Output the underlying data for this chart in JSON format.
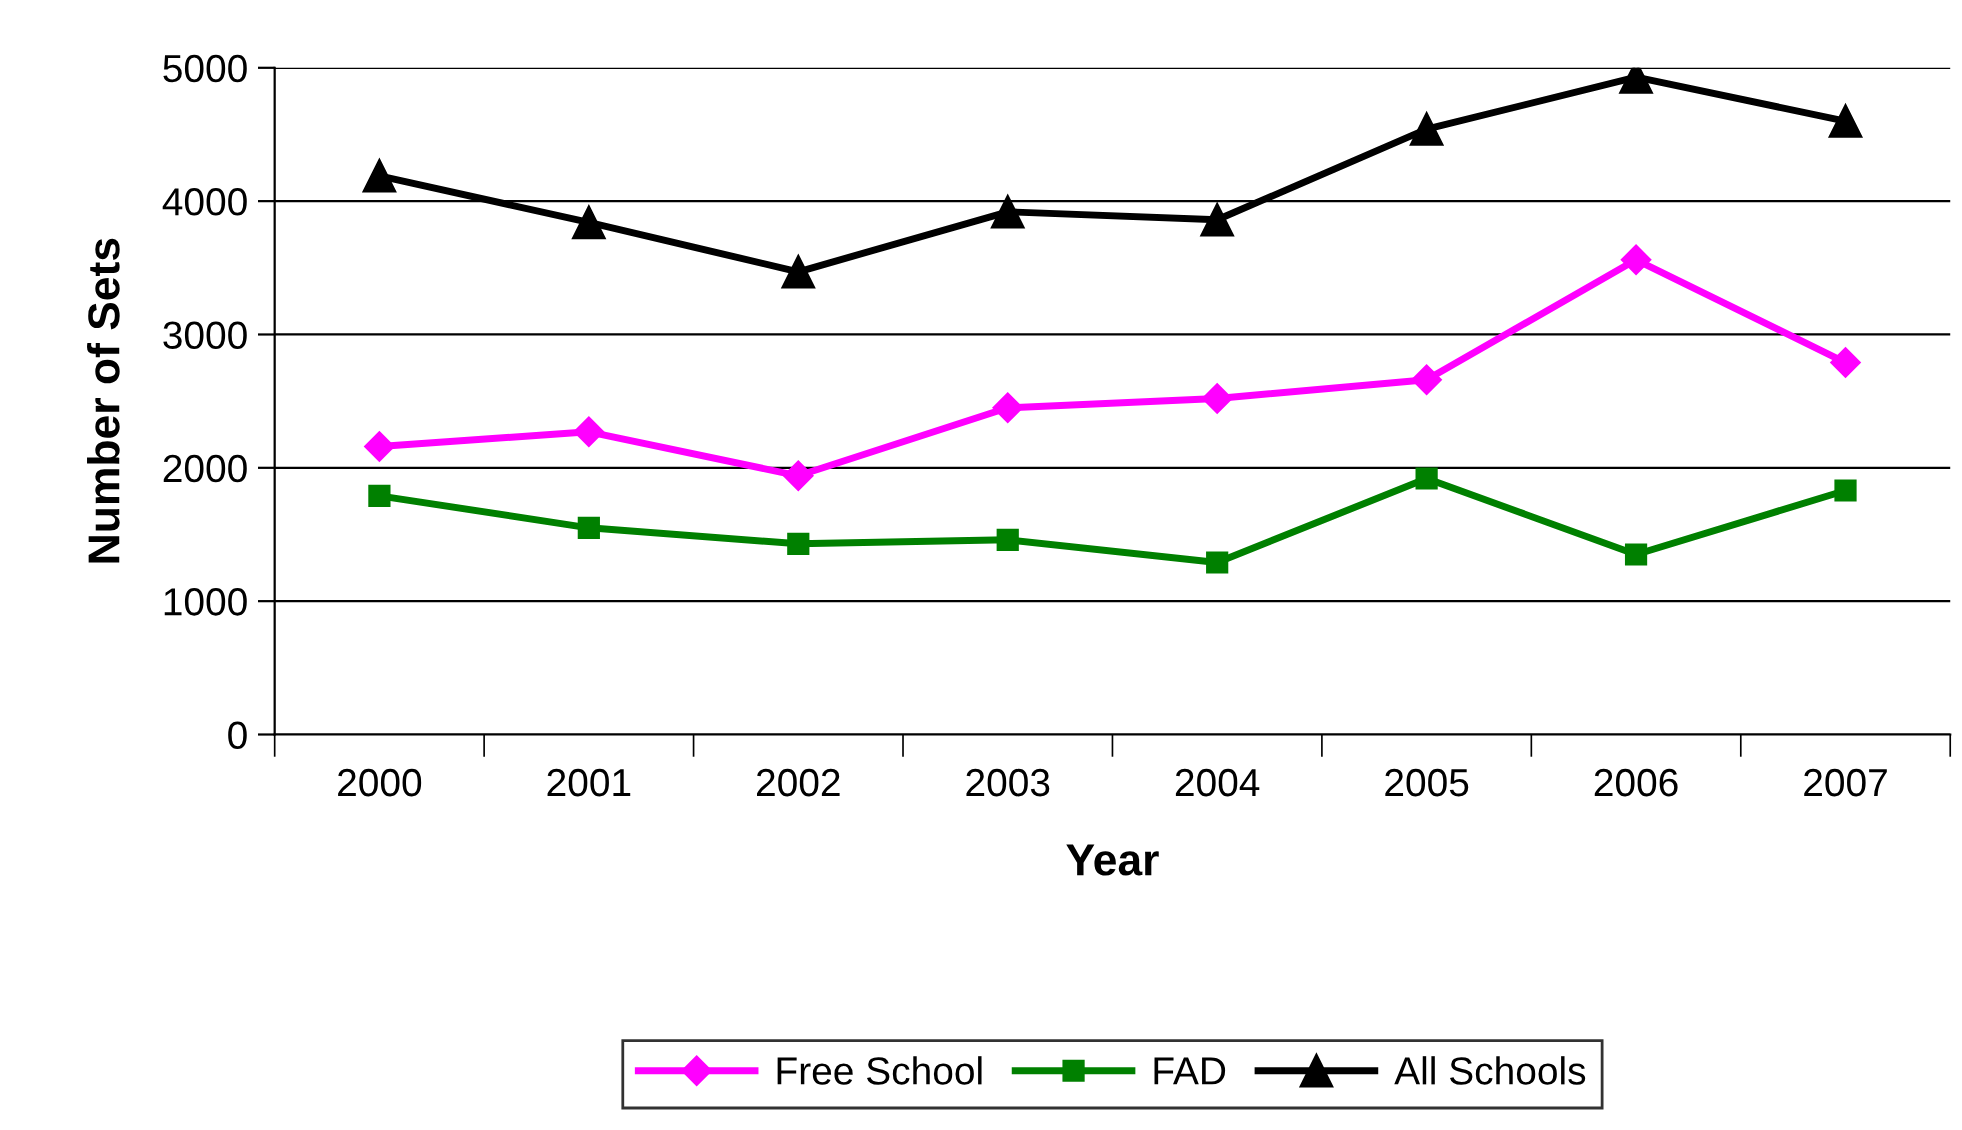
{
  "chart_data": {
    "type": "line",
    "xlabel": "Year",
    "ylabel": "Number of Sets",
    "categories": [
      "2000",
      "2001",
      "2002",
      "2003",
      "2004",
      "2005",
      "2006",
      "2007"
    ],
    "series": [
      {
        "name": "Free School",
        "color": "#ff00ff",
        "marker": "diamond",
        "values": [
          2160,
          2270,
          1940,
          2450,
          2520,
          2660,
          3560,
          2790
        ]
      },
      {
        "name": "FAD",
        "color": "#008000",
        "marker": "square",
        "values": [
          1790,
          1550,
          1430,
          1460,
          1290,
          1920,
          1350,
          1830
        ]
      },
      {
        "name": "All Schools",
        "color": "#000000",
        "marker": "triangle",
        "values": [
          4190,
          3840,
          3470,
          3920,
          3860,
          4540,
          4930,
          4600
        ]
      }
    ],
    "ylim": [
      0,
      5000
    ],
    "yticks": [
      0,
      1000,
      2000,
      3000,
      4000,
      5000
    ],
    "grid": "y",
    "legend": "bottom",
    "line_style": "solid"
  }
}
